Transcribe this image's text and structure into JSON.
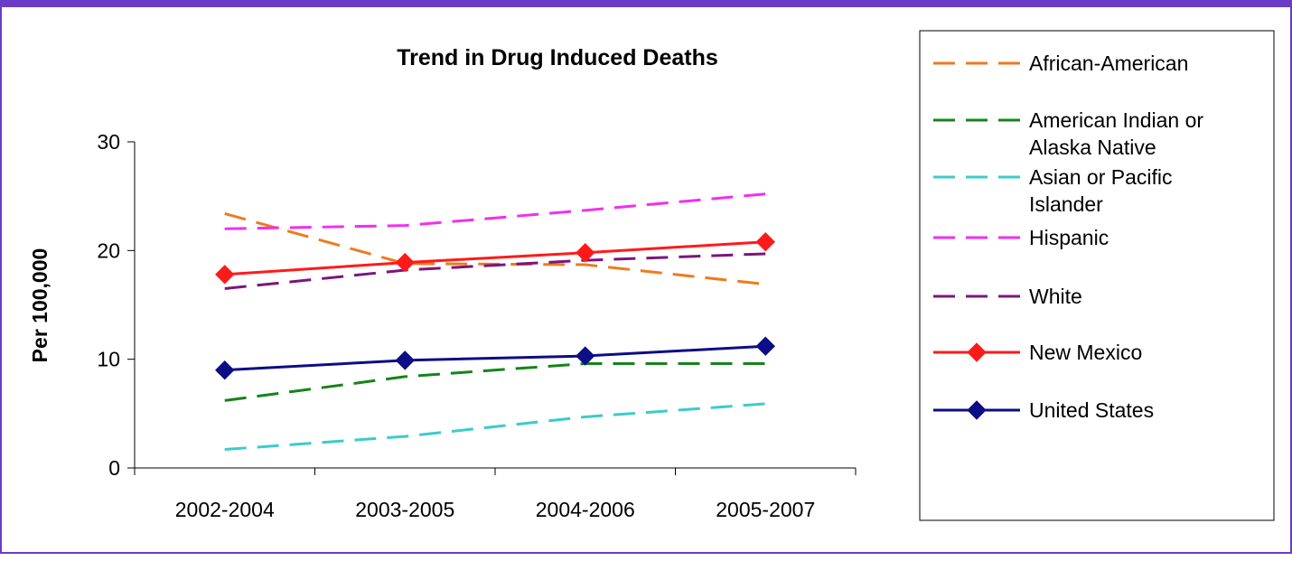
{
  "chart_data": {
    "type": "line",
    "title": "Trend in Drug Induced Deaths",
    "xlabel": "",
    "ylabel": "Per 100,000",
    "ylim": [
      0,
      30
    ],
    "yticks": [
      0,
      10,
      20,
      30
    ],
    "categories": [
      "2002-2004",
      "2003-2005",
      "2004-2006",
      "2005-2007"
    ],
    "grid": false,
    "legend_position": "right",
    "series": [
      {
        "name": "African-American",
        "legend_lines": [
          "African-American"
        ],
        "color": "#f07a1c",
        "dash": true,
        "marker": "none",
        "values": [
          23.4,
          18.8,
          18.7,
          16.9
        ]
      },
      {
        "name": "American Indian or Alaska Native",
        "legend_lines": [
          "American Indian or",
          "Alaska Native"
        ],
        "color": "#15841a",
        "dash": true,
        "marker": "none",
        "values": [
          6.2,
          8.4,
          9.6,
          9.6
        ]
      },
      {
        "name": "Asian or Pacific Islander",
        "legend_lines": [
          "Asian or Pacific",
          "Islander"
        ],
        "color": "#3ccbcb",
        "dash": true,
        "marker": "none",
        "values": [
          1.7,
          2.9,
          4.7,
          5.9
        ]
      },
      {
        "name": "Hispanic",
        "legend_lines": [
          "Hispanic"
        ],
        "color": "#f22ef2",
        "dash": true,
        "marker": "none",
        "values": [
          22.0,
          22.3,
          23.7,
          25.2
        ]
      },
      {
        "name": "White",
        "legend_lines": [
          "White"
        ],
        "color": "#7c157c",
        "dash": true,
        "marker": "none",
        "values": [
          16.5,
          18.2,
          19.1,
          19.7
        ]
      },
      {
        "name": "New Mexico",
        "legend_lines": [
          "New Mexico"
        ],
        "color": "#ff1a1a",
        "dash": false,
        "marker": "diamond",
        "values": [
          17.8,
          18.9,
          19.8,
          20.8
        ]
      },
      {
        "name": "United States",
        "legend_lines": [
          "United States"
        ],
        "color": "#0d0d85",
        "dash": false,
        "marker": "diamond",
        "values": [
          9.0,
          9.9,
          10.3,
          11.2
        ]
      }
    ]
  }
}
